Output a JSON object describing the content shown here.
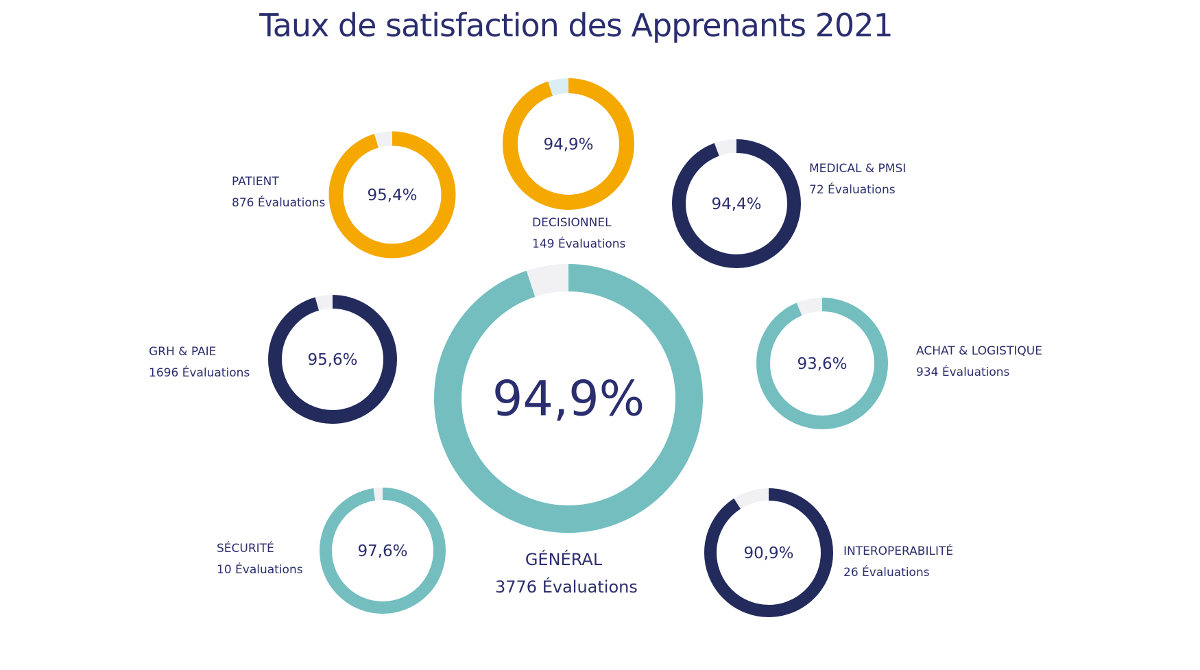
{
  "title": "Taux de satisfaction des Apprenants 2021",
  "colors": {
    "orange": "#f5a800",
    "navy": "#232b5c",
    "teal": "#74bec0",
    "remainder": "#f1f1f4",
    "remainder_blue": "#dbeef4",
    "text": "#2b2e6e"
  },
  "chart_data": {
    "type": "pie",
    "title": "Taux de satisfaction des Apprenants 2021",
    "unit": "%",
    "series": [
      {
        "name": "GÉNÉRAL",
        "value": 94.9,
        "label": "94,9%",
        "evaluations": "3776 Évaluations",
        "color": "#74bec0"
      },
      {
        "name": "DECISIONNEL",
        "value": 94.9,
        "label": "94,9%",
        "evaluations": "149 Évaluations",
        "color": "#f5a800"
      },
      {
        "name": "PATIENT",
        "value": 95.4,
        "label": "95,4%",
        "evaluations": "876 Évaluations",
        "color": "#f5a800"
      },
      {
        "name": "MEDICAL & PMSI",
        "value": 94.4,
        "label": "94,4%",
        "evaluations": "72 Évaluations",
        "color": "#232b5c"
      },
      {
        "name": "GRH & PAIE",
        "value": 95.6,
        "label": "95,6%",
        "evaluations": "1696 Évaluations",
        "color": "#232b5c"
      },
      {
        "name": "ACHAT & LOGISTIQUE",
        "value": 93.6,
        "label": "93,6%",
        "evaluations": "934 Évaluations",
        "color": "#74bec0"
      },
      {
        "name": "SÉCURITÉ",
        "value": 97.6,
        "label": "97,6%",
        "evaluations": "10 Évaluations",
        "color": "#74bec0"
      },
      {
        "name": "INTEROPERABILITÉ",
        "value": 90.9,
        "label": "90,9%",
        "evaluations": "26 Évaluations",
        "color": "#232b5c"
      }
    ]
  }
}
